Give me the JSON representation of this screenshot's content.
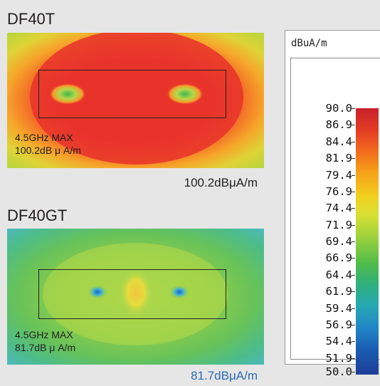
{
  "top": {
    "title": "DF40T",
    "caption_line1": "4.5GHz MAX",
    "caption_line2": "100.2dB μ A/m",
    "peak": "100.2dBμA/m"
  },
  "bottom": {
    "title": "DF40GT",
    "caption_line1": "4.5GHz MAX",
    "caption_line2": "81.7dB μ A/m",
    "peak": "81.7dBμA/m",
    "peak_color": "#2a6cb2"
  },
  "legend": {
    "unit": "dBuA/m",
    "ticks": [
      "90.0",
      "86.9",
      "84.4",
      "81.9",
      "79.4",
      "76.9",
      "74.4",
      "71.9",
      "69.4",
      "66.9",
      "64.4",
      "61.9",
      "59.4",
      "56.9",
      "54.4",
      "51.9",
      "50.0"
    ]
  }
}
